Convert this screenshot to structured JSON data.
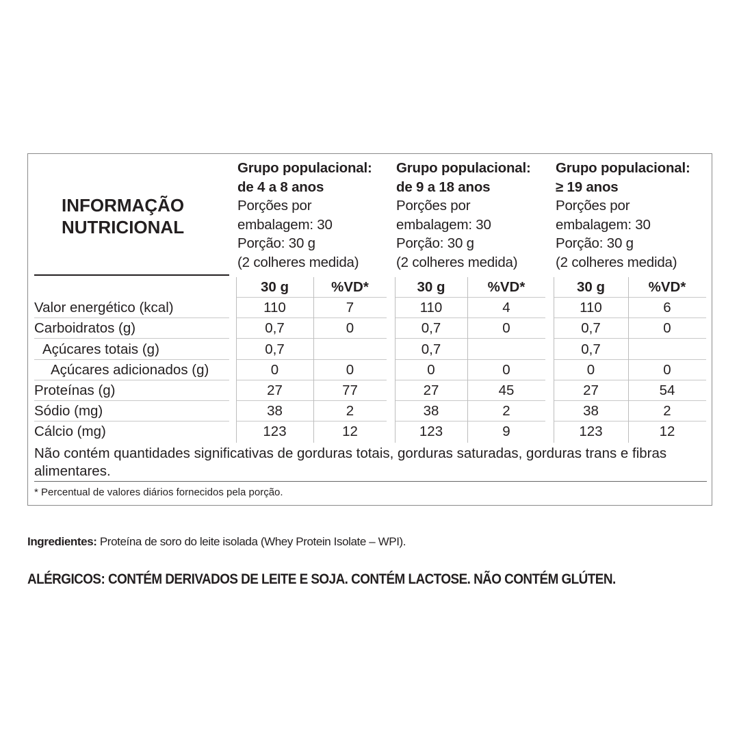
{
  "title": [
    "INFORMAÇÃO",
    "NUTRICIONAL"
  ],
  "groups": [
    {
      "name": "Grupo populacional:",
      "age": "de 4 a 8 anos",
      "portions": [
        "Porções por",
        "embalagem: 30"
      ],
      "portion": "Porção: 30 g",
      "measure": "(2 colheres medida)",
      "col_amount": "30 g",
      "col_vd": "%VD*"
    },
    {
      "name": "Grupo populacional:",
      "age": "de 9 a 18 anos",
      "portions": [
        "Porções por",
        "embalagem: 30"
      ],
      "portion": "Porção: 30 g",
      "measure": "(2 colheres medida)",
      "col_amount": "30 g",
      "col_vd": "%VD*"
    },
    {
      "name": "Grupo populacional:",
      "age": "≥ 19 anos",
      "portions": [
        "Porções por",
        "embalagem: 30"
      ],
      "portion": "Porção: 30 g",
      "measure": "(2 colheres medida)",
      "col_amount": "30 g",
      "col_vd": "%VD*"
    }
  ],
  "rows": [
    {
      "label": "Valor energético (kcal)",
      "indent": 0,
      "values": [
        "110",
        "7",
        "110",
        "4",
        "110",
        "6"
      ]
    },
    {
      "label": "Carboidratos (g)",
      "indent": 0,
      "values": [
        "0,7",
        "0",
        "0,7",
        "0",
        "0,7",
        "0"
      ]
    },
    {
      "label": "Açúcares totais (g)",
      "indent": 1,
      "values": [
        "0,7",
        "",
        "0,7",
        "",
        "0,7",
        ""
      ]
    },
    {
      "label": "Açúcares adicionados (g)",
      "indent": 2,
      "values": [
        "0",
        "0",
        "0",
        "0",
        "0",
        "0"
      ]
    },
    {
      "label": "Proteínas (g)",
      "indent": 0,
      "values": [
        "27",
        "77",
        "27",
        "45",
        "27",
        "54"
      ]
    },
    {
      "label": "Sódio (mg)",
      "indent": 0,
      "values": [
        "38",
        "2",
        "38",
        "2",
        "38",
        "2"
      ]
    },
    {
      "label": "Cálcio (mg)",
      "indent": 0,
      "values": [
        "123",
        "12",
        "123",
        "9",
        "123",
        "12"
      ]
    }
  ],
  "note": "Não contém quantidades significativas de gorduras totais, gorduras saturadas, gorduras trans e fibras alimentares.",
  "footnote": "* Percentual de valores diários fornecidos pela porção.",
  "ingredients": {
    "label": "Ingredientes:",
    "text": " Proteína de soro do leite isolada (Whey Protein Isolate – WPI)."
  },
  "allergens": "ALÉRGICOS: CONTÉM DERIVADOS DE LEITE E SOJA. CONTÉM LACTOSE. NÃO CONTÉM GLÚTEN."
}
